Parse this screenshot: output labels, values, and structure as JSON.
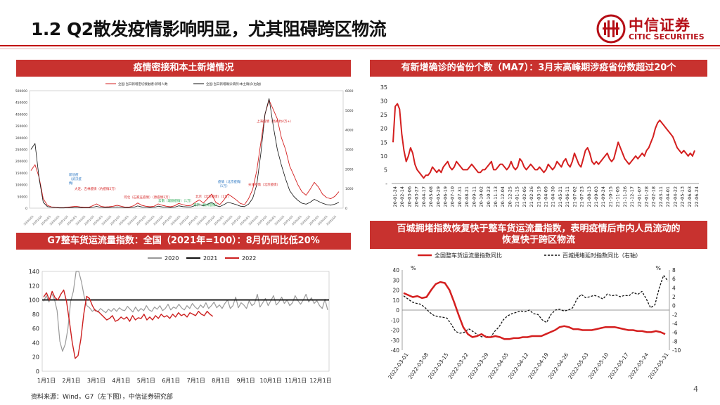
{
  "header": {
    "title": "1.2 Q2散发疫情影响明显，尤其阻碍跨区物流",
    "logo_zh": "中信证券",
    "logo_en": "CITIC SECURITIES",
    "accent": "#c8322f"
  },
  "footer": {
    "source": "资料来源：Wind，G7（左下图），中信证券研究部",
    "page": "4"
  },
  "banners": {
    "tl": "疫情密接和本土新增情况",
    "tr": "有新增确诊的省份个数（MA7）：3月末高峰期涉疫省份数超过20个",
    "bl": "G7整车货运流量指数：全国（2021年=100）：8月仍同比低20%",
    "br1": "百城拥堵指数恢复快于整车货运流量指数，表明疫情后市内人员流动的",
    "br2": "恢复快于跨区物流"
  },
  "chart_data": [
    {
      "id": "close-contacts",
      "type": "line",
      "legend": [
        "全国:当日新增密切接触者:新增人数",
        "全国:当日新增确诊病例:本土确诊(右轴)"
      ],
      "series_colors": [
        "#d42020",
        "#111111"
      ],
      "y_ticks": [
        "500000",
        "450000",
        "400000",
        "350000",
        "300000",
        "250000",
        "200000",
        "150000",
        "100000",
        "50000",
        "0"
      ],
      "y2_ticks": [
        "6000",
        "5000",
        "4000",
        "3000",
        "2000",
        "1000",
        "0"
      ],
      "annotations": [
        {
          "text": "上海疫情（高峰约4万+）",
          "color": "#d42020"
        },
        {
          "text": "新冠疫\n（武汉疫\n情）",
          "color": "#1f6fbf"
        },
        {
          "text": "大连、吉林疫情（约疫情2万）",
          "color": "#d42020"
        },
        {
          "text": "河北（石家庄疫情）（原疫情2万）",
          "color": "#d42020"
        },
        {
          "text": "云南（瑞丽疫情）（1万）",
          "color": "#1ea34a"
        },
        {
          "text": "南京（扬州疫情）",
          "color": "#1ea34a"
        },
        {
          "text": "北京（北京疫情）（1万）",
          "color": "#d42020"
        },
        {
          "text": "疫情（北京疫情）\n（1万）",
          "color": "#1f6fbf"
        },
        {
          "text": "天津疫情（北京疫情）",
          "color": "#d42020"
        }
      ],
      "new_contacts": [
        160000,
        185000,
        130000,
        40000,
        12000,
        5000,
        3000,
        2000,
        2000,
        4000,
        6000,
        8000,
        5000,
        3000,
        3000,
        10000,
        18000,
        8000,
        5000,
        6000,
        8000,
        12000,
        8000,
        4000,
        5000,
        10000,
        22000,
        12000,
        8000,
        6000,
        8000,
        18000,
        12000,
        8000,
        6000,
        10000,
        20000,
        15000,
        10000,
        12000,
        25000,
        35000,
        22000,
        40000,
        60000,
        25000,
        15000,
        35000,
        60000,
        48000,
        35000,
        20000,
        15000,
        40000,
        80000,
        160000,
        280000,
        400000,
        460000,
        420000,
        380000,
        300000,
        250000,
        180000,
        140000,
        100000,
        70000,
        55000,
        80000,
        110000,
        90000,
        60000,
        45000,
        40000,
        50000,
        70000
      ],
      "local_confirmed": [
        3000,
        3300,
        1500,
        300,
        80,
        40,
        20,
        10,
        10,
        20,
        30,
        40,
        30,
        15,
        15,
        40,
        90,
        40,
        30,
        30,
        40,
        60,
        40,
        20,
        20,
        40,
        110,
        60,
        40,
        30,
        40,
        100,
        60,
        40,
        30,
        50,
        120,
        80,
        60,
        60,
        130,
        180,
        120,
        200,
        300,
        130,
        80,
        180,
        300,
        240,
        180,
        100,
        80,
        200,
        500,
        1200,
        2800,
        4800,
        5600,
        4200,
        3000,
        2200,
        1500,
        900,
        600,
        400,
        250,
        200,
        300,
        450,
        350,
        250,
        180,
        150,
        200,
        300
      ]
    },
    {
      "id": "provinces-ma7",
      "type": "line",
      "y_ticks": [
        "35",
        "30",
        "25",
        "20",
        "15",
        "10",
        "5",
        "-"
      ],
      "x_labels": [
        "20-01-24",
        "20-02-14",
        "20-03-06",
        "20-03-27",
        "20-04-17",
        "20-05-08",
        "20-05-29",
        "20-06-19",
        "20-07-10",
        "20-07-31",
        "20-08-21",
        "20-09-11",
        "20-10-02",
        "20-10-23",
        "20-11-13",
        "20-12-04",
        "20-12-25",
        "21-01-15",
        "21-02-05",
        "21-02-26",
        "21-03-19",
        "21-04-09",
        "21-04-30",
        "21-05-21",
        "21-06-11",
        "21-07-02",
        "21-07-23",
        "21-08-13",
        "21-09-03",
        "21-09-24",
        "21-10-15",
        "21-11-05",
        "21-11-26",
        "21-12-17",
        "22-01-07",
        "22-01-28",
        "22-02-18",
        "22-03-11",
        "22-04-01",
        "22-04-22",
        "22-05-13",
        "22-06-03",
        "22-06-24"
      ],
      "values": [
        15,
        28,
        29,
        27,
        18,
        12,
        8,
        10,
        13,
        11,
        7,
        5,
        4,
        3,
        2,
        3,
        3,
        4,
        6,
        5,
        4,
        5,
        4,
        6,
        7,
        8,
        6,
        5,
        6,
        8,
        7,
        6,
        5,
        5,
        5,
        6,
        7,
        6,
        5,
        4,
        4,
        5,
        5,
        6,
        7,
        8,
        5,
        5,
        6,
        7,
        7,
        6,
        5,
        6,
        8,
        6,
        5,
        6,
        9,
        8,
        6,
        5,
        6,
        7,
        6,
        5,
        5,
        6,
        5,
        4,
        5,
        7,
        6,
        5,
        6,
        8,
        7,
        6,
        8,
        9,
        7,
        6,
        8,
        11,
        9,
        7,
        6,
        9,
        12,
        13,
        11,
        8,
        7,
        8,
        7,
        8,
        9,
        10,
        11,
        9,
        8,
        9,
        12,
        15,
        13,
        11,
        9,
        8,
        7,
        8,
        9,
        10,
        9,
        10,
        11,
        10,
        12,
        13,
        15,
        17,
        20,
        22,
        23,
        22,
        21,
        20,
        19,
        18,
        17,
        15,
        13,
        12,
        11,
        12,
        11,
        10,
        11,
        10,
        12
      ]
    },
    {
      "id": "g7-freight",
      "type": "line",
      "legend": [
        "2020",
        "2021",
        "2022"
      ],
      "series_colors": [
        "#999999",
        "#111111",
        "#cc1f1f"
      ],
      "y_ticks": [
        "140",
        "120",
        "100",
        "80",
        "60",
        "40",
        "20",
        "0"
      ],
      "x_labels": [
        "1月1日",
        "2月1日",
        "3月1日",
        "4月1日",
        "5月1日",
        "6月1日",
        "7月1日",
        "8月1日",
        "9月1日",
        "10月1日",
        "11月1日",
        "12月1日"
      ],
      "s2021_level": 100,
      "s2020": [
        98,
        106,
        97,
        109,
        101,
        85,
        42,
        28,
        38,
        60,
        98,
        112,
        140,
        140,
        125,
        105,
        92,
        89,
        84,
        87,
        83,
        88,
        85,
        82,
        87,
        84,
        88,
        84,
        89,
        86,
        85,
        91,
        87,
        83,
        90,
        84,
        88,
        85,
        92,
        86,
        84,
        90,
        87,
        92,
        85,
        88,
        94,
        86,
        90,
        88,
        94,
        89,
        86,
        92,
        88,
        95,
        90,
        87,
        93,
        89,
        96,
        88,
        92,
        97,
        89,
        93,
        88,
        95,
        100,
        88,
        92,
        104,
        89,
        96,
        93,
        88,
        99,
        92,
        95,
        108,
        90,
        96,
        102,
        92,
        99,
        106,
        93,
        97,
        104,
        95,
        100,
        92,
        96,
        106,
        99,
        94,
        100,
        108,
        97,
        103,
        95,
        99,
        92,
        88,
        101,
        86
      ],
      "s2022": [
        104,
        110,
        100,
        112,
        103,
        100,
        108,
        114,
        98,
        70,
        40,
        18,
        22,
        45,
        80,
        105,
        102,
        92,
        85,
        84,
        80,
        76,
        72,
        74,
        78,
        70,
        72,
        76,
        73,
        76,
        70,
        78,
        72,
        75,
        74,
        80,
        72,
        76,
        72,
        78,
        74,
        80,
        76,
        78,
        74,
        80,
        76,
        82,
        78,
        80,
        76,
        82,
        80,
        78,
        84,
        80,
        78,
        84,
        80,
        77
      ]
    },
    {
      "id": "freight-vs-congestion",
      "type": "line",
      "legend": [
        "全国整车货运流量指数同比",
        "百城拥堵延时指数同比（右轴）"
      ],
      "series_colors": [
        "#d41f1f",
        "#111111"
      ],
      "unit_left": "%",
      "unit_right": "%",
      "y_ticks": [
        "40",
        "30",
        "20",
        "10",
        "0",
        "-10",
        "-20",
        "-30",
        "-40"
      ],
      "y2_ticks": [
        "8",
        "6",
        "4",
        "2",
        "0",
        "-2",
        "-4",
        "-6",
        "-8",
        "-10"
      ],
      "x_labels": [
        "2022-03-01",
        "2022-03-08",
        "2022-03-15",
        "2022-03-22",
        "2022-03-29",
        "2022-04-05",
        "2022-04-12",
        "2022-04-19",
        "2022-04-26",
        "2022-05-03",
        "2022-05-10",
        "2022-05-17",
        "2022-05-24",
        "2022-05-31"
      ],
      "freight_yoy": [
        17,
        15,
        13,
        14,
        12,
        13,
        20,
        26,
        28,
        27,
        20,
        8,
        -5,
        -17,
        -24,
        -27,
        -26,
        -24,
        -27,
        -27,
        -26,
        -27,
        -29,
        -29,
        -28,
        -28,
        -27,
        -27,
        -26,
        -26,
        -26,
        -24,
        -22,
        -20,
        -17,
        -16,
        -17,
        -19,
        -19,
        -20,
        -20,
        -20,
        -19,
        -18,
        -17,
        -17,
        -17,
        -18,
        -19,
        -20,
        -20,
        -21,
        -21,
        -22,
        -22,
        -21,
        -22,
        -24
      ],
      "congestion_yoy": [
        2.2,
        1.5,
        0.8,
        0.5,
        0.3,
        -0.5,
        -1.5,
        -2.2,
        -2.5,
        -2.6,
        -2.8,
        -4.2,
        -5.8,
        -6.2,
        -6.0,
        -5.2,
        -5.8,
        -6.5,
        -7.0,
        -6.8,
        -7.2,
        -5.8,
        -4.8,
        -3.2,
        -2.3,
        -1.8,
        -1.5,
        -1.2,
        -1.4,
        -1.0,
        -1.8,
        -2.0,
        -3.2,
        -3.8,
        -2.0,
        -1.0,
        -0.8,
        -1.2,
        -1.0,
        -0.5,
        1.5,
        2.5,
        1.8,
        2.0,
        2.3,
        2.0,
        1.5,
        2.6,
        2.2,
        2.4,
        2.0,
        2.3,
        2.2,
        3.0,
        2.5,
        3.2,
        1.5,
        -0.5,
        0.2,
        4.0,
        6.8,
        5.5
      ]
    }
  ]
}
